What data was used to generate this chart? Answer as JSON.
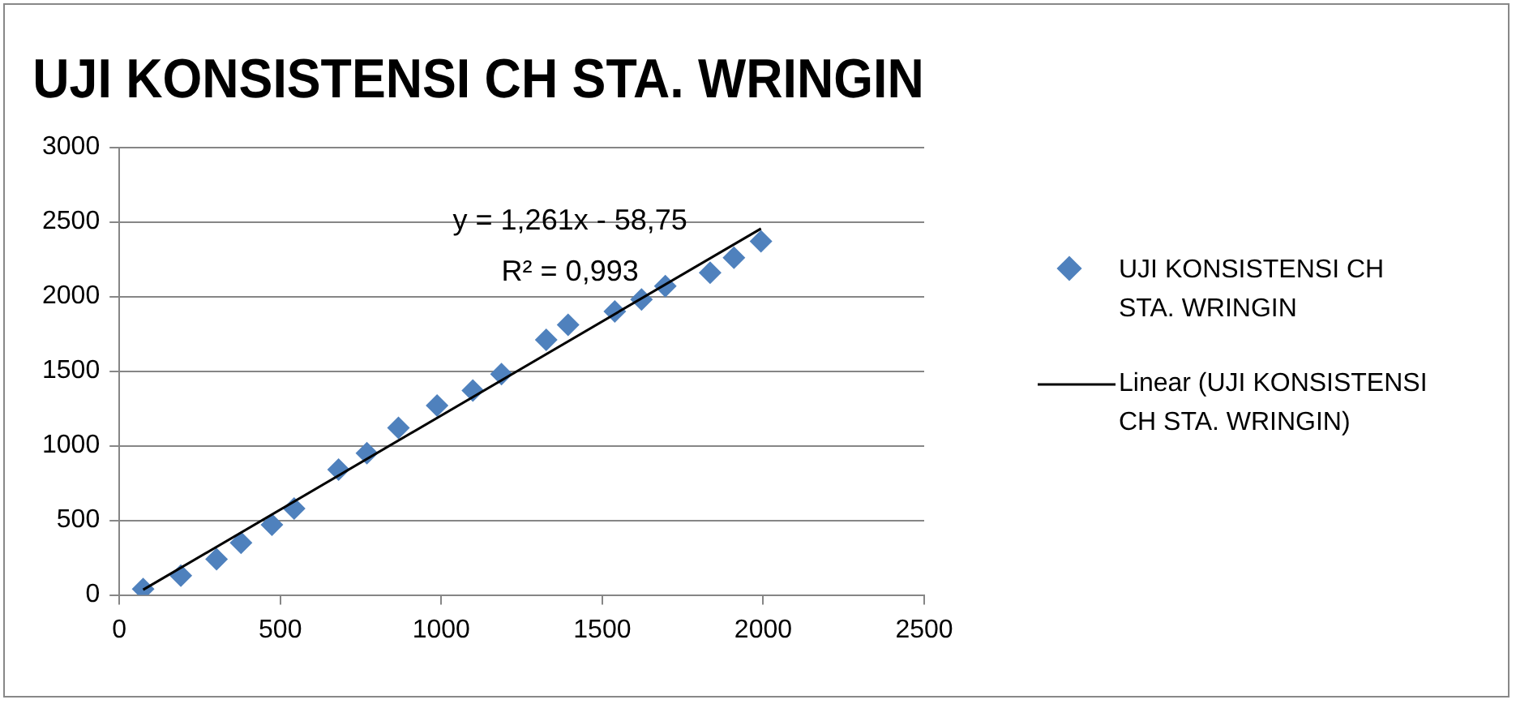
{
  "chart_data": {
    "type": "scatter",
    "title": "UJI KONSISTENSI CH STA. WRINGIN",
    "x": [
      74,
      191,
      302,
      378,
      474,
      543,
      681,
      769,
      867,
      987,
      1098,
      1187,
      1326,
      1394,
      1539,
      1622,
      1696,
      1835,
      1909,
      1993
    ],
    "series": [
      {
        "name": "UJI KONSISTENSI CH STA. WRINGIN",
        "color": "#4f81bd",
        "marker": "diamond",
        "values": [
          40,
          130,
          240,
          350,
          470,
          580,
          840,
          950,
          1120,
          1270,
          1370,
          1480,
          1710,
          1810,
          1900,
          1980,
          2070,
          2160,
          2260,
          2370
        ]
      },
      {
        "name": "Linear (UJI KONSISTENSI CH STA. WRINGIN)",
        "type": "line",
        "color": "#000000",
        "marker": "none",
        "line_style": "solid",
        "x": [
          74,
          1993
        ],
        "values": [
          35,
          2455
        ]
      }
    ],
    "xlim": [
      0,
      2500
    ],
    "xticks": [
      0,
      500,
      1000,
      1500,
      2000,
      2500
    ],
    "ylim": [
      0,
      3000
    ],
    "yticks": [
      0,
      500,
      1000,
      1500,
      2000,
      2500,
      3000
    ],
    "grid": "y",
    "legend": "right",
    "annotations": [
      "y = 1,261x - 58,75",
      "R² = 0,993"
    ]
  }
}
